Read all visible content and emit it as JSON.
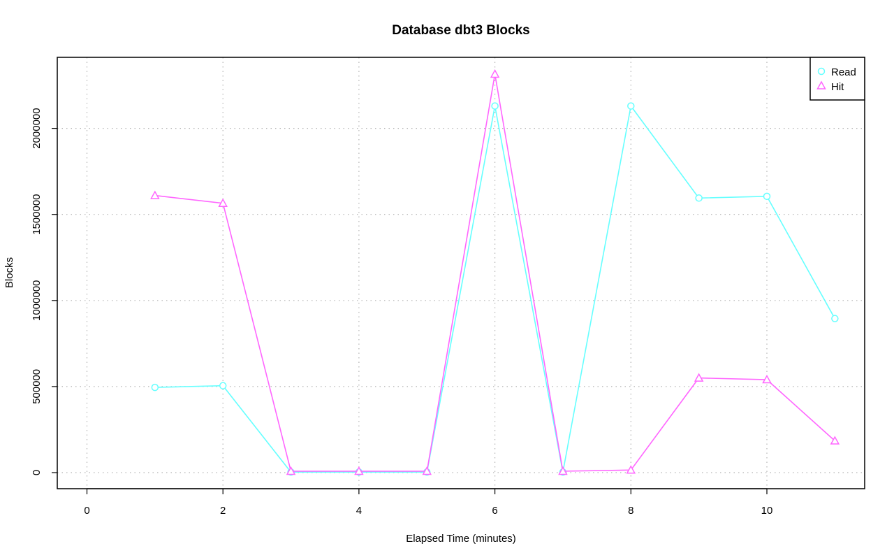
{
  "chart_data": {
    "type": "line",
    "title": "Database dbt3 Blocks",
    "xlabel": "Elapsed Time (minutes)",
    "ylabel": "Blocks",
    "xlim": [
      0,
      11
    ],
    "ylim": [
      0,
      2300000
    ],
    "x_ticks": [
      0,
      2,
      4,
      6,
      8,
      10
    ],
    "y_ticks": [
      0,
      500000,
      1000000,
      1500000,
      2000000
    ],
    "grid": true,
    "legend_position": "top-right",
    "x": [
      1,
      2,
      3,
      4,
      5,
      6,
      7,
      8,
      9,
      10,
      11
    ],
    "series": [
      {
        "name": "Read",
        "marker": "circle",
        "color": "#66ffff",
        "values": [
          495000,
          505000,
          3000,
          3000,
          3000,
          2130000,
          3000,
          2130000,
          1595000,
          1605000,
          895000
        ]
      },
      {
        "name": "Hit",
        "marker": "triangle",
        "color": "#ff66ff",
        "values": [
          1610000,
          1565000,
          8000,
          8000,
          8000,
          2315000,
          8000,
          15000,
          550000,
          540000,
          185000
        ]
      }
    ]
  }
}
